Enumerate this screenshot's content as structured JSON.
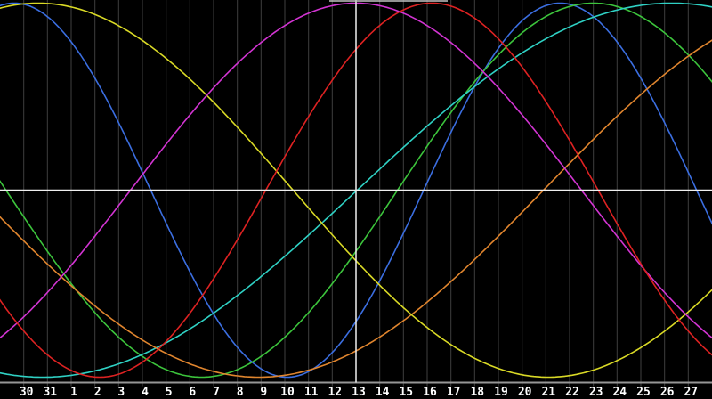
{
  "chart_data": {
    "type": "line",
    "title": "",
    "xlabel": "",
    "ylabel": "",
    "grid": true,
    "background_style": "dark",
    "x_tick_labels": [
      "30",
      "31",
      "1",
      "2",
      "3",
      "4",
      "5",
      "6",
      "7",
      "8",
      "9",
      "10",
      "11",
      "12",
      "13",
      "14",
      "15",
      "16",
      "17",
      "18",
      "19",
      "20",
      "21",
      "22",
      "23",
      "24",
      "25",
      "26",
      "27"
    ],
    "today_tick_label": "13",
    "today_tick_index": 14,
    "days_shown": 29,
    "x_range_days": [
      -15,
      15
    ],
    "ylim": [
      -1,
      1
    ],
    "curve_formula": "value = cos(2*PI*(t - peak_day_offset)/period_days), t = days from today line",
    "series": [
      {
        "name": "blue",
        "color": "#3b6ee0",
        "period_days": 23,
        "peak_day_offset": 8.6
      },
      {
        "name": "green",
        "color": "#3cc43c",
        "period_days": 33,
        "peak_day_offset": 10
      },
      {
        "name": "cyan",
        "color": "#2fd1c4",
        "period_days": 53,
        "peak_day_offset": 13.3
      },
      {
        "name": "orange",
        "color": "#e0852e",
        "period_days": 48,
        "peak_day_offset": 19.9
      },
      {
        "name": "yellow",
        "color": "#d9d926",
        "period_days": 43,
        "peak_day_offset": -13.4
      },
      {
        "name": "magenta",
        "color": "#d234d2",
        "period_days": 38,
        "peak_day_offset": 0
      },
      {
        "name": "red",
        "color": "#dd2222",
        "period_days": 28,
        "peak_day_offset": 3.2
      }
    ]
  },
  "colors": {
    "background": "#000000",
    "gridline": "#3f3f3f",
    "axis_line": "#969696",
    "zero_line": "#f0f0f0",
    "today_line": "#f0f0f0",
    "tick_label": "#ffffff",
    "top_marker": "#c4c4c4"
  }
}
